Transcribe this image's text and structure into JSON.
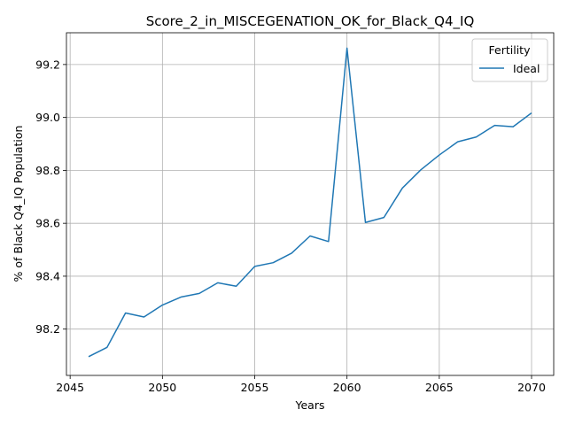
{
  "chart_data": {
    "type": "line",
    "title": "Score_2_in_MISCEGENATION_OK_for_Black_Q4_IQ",
    "xlabel": "Years",
    "ylabel": "% of Black Q4_IQ Population",
    "xlim": [
      2044.8,
      2071.2
    ],
    "ylim": [
      98.025,
      99.32
    ],
    "xticks": [
      2045,
      2050,
      2055,
      2060,
      2065,
      2070
    ],
    "yticks": [
      98.2,
      98.4,
      98.6,
      98.8,
      99.0,
      99.2
    ],
    "xtick_labels": [
      "2045",
      "2050",
      "2055",
      "2060",
      "2065",
      "2070"
    ],
    "ytick_labels": [
      "98.2",
      "98.4",
      "98.6",
      "98.8",
      "99.0",
      "99.2"
    ],
    "grid": true,
    "legend": {
      "title": "Fertility",
      "position": "top-right"
    },
    "x": [
      2046,
      2047,
      2048,
      2049,
      2050,
      2051,
      2052,
      2053,
      2054,
      2055,
      2056,
      2057,
      2058,
      2059,
      2060,
      2061,
      2062,
      2063,
      2064,
      2065,
      2066,
      2067,
      2068,
      2069,
      2070
    ],
    "series": [
      {
        "name": "Ideal",
        "color": "#1f77b4",
        "values": [
          98.096,
          98.131,
          98.261,
          98.246,
          98.291,
          98.321,
          98.335,
          98.375,
          98.362,
          98.437,
          98.451,
          98.487,
          98.552,
          98.531,
          99.262,
          98.603,
          98.622,
          98.733,
          98.802,
          98.858,
          98.908,
          98.926,
          98.97,
          98.965,
          99.017
        ]
      }
    ]
  }
}
